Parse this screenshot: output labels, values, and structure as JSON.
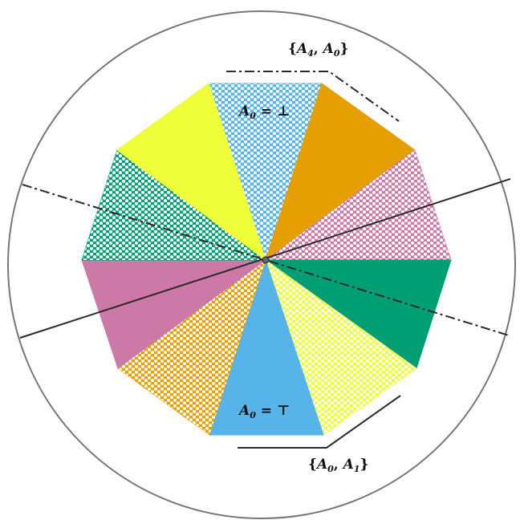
{
  "labels": {
    "a0_bottom": {
      "main": "A",
      "sub": "0",
      "tail": " = ⊤"
    },
    "a0_top": {
      "main": "A",
      "sub": "0",
      "tail": " = ⊥"
    },
    "pair_top": {
      "open": "{",
      "a": "A",
      "a_sub": "4",
      "sep": ", ",
      "b": "A",
      "b_sub": "0",
      "close": "}"
    },
    "pair_bottom": {
      "open": "{",
      "a": "A",
      "a_sub": "0",
      "sep": ", ",
      "b": "A",
      "b_sub": "1",
      "close": "}"
    }
  },
  "sectors": [
    {
      "name": "sector-top",
      "color": "#56B4E9",
      "pattern": "dotted"
    },
    {
      "name": "sector-top-right",
      "color": "#E69F00",
      "pattern": "solid"
    },
    {
      "name": "sector-upper-right",
      "color": "#CC79A7",
      "pattern": "dotted"
    },
    {
      "name": "sector-lower-right",
      "color": "#009E73",
      "pattern": "solid"
    },
    {
      "name": "sector-bottom-right",
      "color": "#EEFF3A",
      "pattern": "dotted"
    },
    {
      "name": "sector-bottom",
      "color": "#56B4E9",
      "pattern": "solid"
    },
    {
      "name": "sector-bottom-left",
      "color": "#E69F00",
      "pattern": "dotted"
    },
    {
      "name": "sector-lower-left",
      "color": "#CC79A7",
      "pattern": "solid"
    },
    {
      "name": "sector-upper-left",
      "color": "#009E73",
      "pattern": "dotted"
    },
    {
      "name": "sector-top-left",
      "color": "#EEFF3A",
      "pattern": "solid"
    }
  ],
  "colors": {
    "circle_stroke": "#777777",
    "line_stroke": "#2a2a2a",
    "center_fill": "#666666"
  }
}
